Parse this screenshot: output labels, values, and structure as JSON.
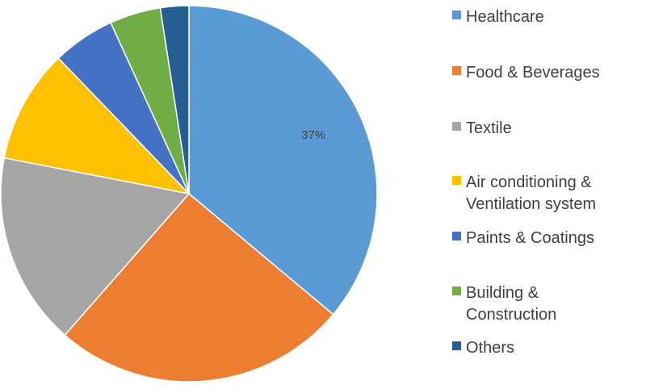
{
  "chart_data": {
    "type": "pie",
    "title": "",
    "categories": [
      "Healthcare",
      "Food & Beverages",
      "Textile",
      "Air conditioning &\nVentilation system",
      "Paints & Coatings",
      "Building &\nConstruction",
      "Others"
    ],
    "values": [
      37,
      26,
      17,
      10,
      5.5,
      4.5,
      2.5
    ],
    "colors": [
      "#5B9BD5",
      "#ED7D31",
      "#A5A5A5",
      "#FFC000",
      "#4472C4",
      "#70AD47",
      "#255E91"
    ],
    "data_labels": [
      "37%",
      "",
      "",
      "",
      "",
      "",
      ""
    ],
    "start_angle_deg": 0,
    "direction": "clockwise",
    "legend_position": "right"
  }
}
